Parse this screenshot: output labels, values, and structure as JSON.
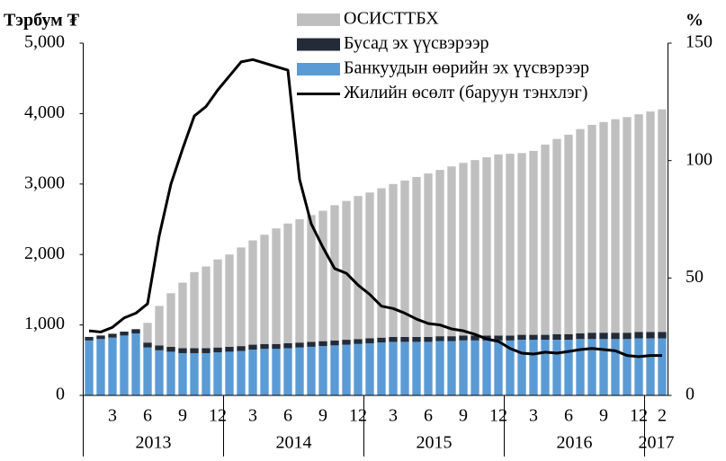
{
  "chart_data": {
    "type": "bar",
    "ylabel": "Тэрбум ₮",
    "y2label": "%",
    "categories": [
      null,
      null,
      "3",
      null,
      null,
      "6",
      null,
      null,
      "9",
      null,
      null,
      "12",
      null,
      null,
      "3",
      null,
      null,
      "6",
      null,
      null,
      "9",
      null,
      null,
      "12",
      null,
      null,
      "3",
      null,
      null,
      "6",
      null,
      null,
      "9",
      null,
      null,
      "12",
      null,
      null,
      "3",
      null,
      null,
      "6",
      null,
      null,
      "9",
      null,
      null,
      "12",
      null,
      "2"
    ],
    "years": [
      {
        "label": "2013",
        "from": 0,
        "to": 11
      },
      {
        "label": "2014",
        "from": 12,
        "to": 23
      },
      {
        "label": "2015",
        "from": 24,
        "to": 35
      },
      {
        "label": "2016",
        "from": 36,
        "to": 47
      },
      {
        "label": "2017",
        "from": 48,
        "to": 49
      }
    ],
    "series": [
      {
        "name": "Банкуудын өөрийн эх үүсвэрээр",
        "color": "#5b9bd5",
        "type": "bar",
        "values": [
          780,
          800,
          820,
          850,
          880,
          680,
          640,
          620,
          600,
          600,
          600,
          610,
          620,
          630,
          650,
          660,
          660,
          670,
          680,
          690,
          700,
          710,
          720,
          730,
          740,
          750,
          760,
          760,
          760,
          760,
          770,
          770,
          780,
          780,
          780,
          780,
          780,
          790,
          790,
          790,
          790,
          790,
          800,
          800,
          800,
          800,
          800,
          810,
          810,
          810
        ]
      },
      {
        "name": "Бусад эх үүсвэрээр",
        "color": "#232b38",
        "type": "bar",
        "values": [
          50,
          50,
          55,
          55,
          60,
          70,
          70,
          70,
          70,
          70,
          70,
          70,
          70,
          70,
          70,
          70,
          70,
          70,
          70,
          70,
          70,
          70,
          70,
          70,
          70,
          70,
          70,
          70,
          70,
          70,
          70,
          70,
          70,
          70,
          70,
          70,
          70,
          70,
          70,
          70,
          80,
          80,
          80,
          90,
          90,
          90,
          90,
          90,
          90,
          90
        ]
      },
      {
        "name": "ОСИСТТБХ",
        "color": "#bfbfbf",
        "type": "bar",
        "values": [
          0,
          0,
          0,
          0,
          0,
          280,
          560,
          760,
          930,
          1080,
          1160,
          1250,
          1310,
          1400,
          1480,
          1550,
          1640,
          1700,
          1750,
          1800,
          1850,
          1920,
          1970,
          2030,
          2070,
          2120,
          2170,
          2220,
          2270,
          2320,
          2360,
          2410,
          2450,
          2490,
          2530,
          2570,
          2580,
          2580,
          2610,
          2700,
          2770,
          2830,
          2900,
          2950,
          2990,
          3030,
          3060,
          3090,
          3130,
          3160
        ]
      },
      {
        "name": "Жилийн өсөлт (баруун тэнхлэг)",
        "color": "#000000",
        "type": "line",
        "axis": "y2",
        "values": [
          27.5,
          27,
          29,
          33,
          35,
          39,
          68,
          90,
          105,
          119,
          123,
          130,
          136,
          142,
          143,
          141.5,
          140,
          138.5,
          92,
          73,
          63,
          54,
          52,
          47,
          43,
          38,
          37,
          35,
          32.5,
          30.6,
          30,
          28.3,
          27.5,
          26,
          24,
          23,
          20,
          18,
          17.6,
          18.4,
          18,
          18.7,
          19.5,
          20,
          19.5,
          19,
          17,
          16.5,
          17,
          17
        ]
      }
    ],
    "ylim": [
      0,
      5000
    ],
    "yticks": [
      0,
      {
        "value": 1000,
        "label": "1,000"
      },
      {
        "value": 2000,
        "label": "2,000"
      },
      {
        "value": 3000,
        "label": "3,000"
      },
      {
        "value": 4000,
        "label": "4,000"
      },
      {
        "value": 5000,
        "label": "5,000"
      }
    ],
    "y2lim": [
      0,
      150
    ],
    "y2ticks": [
      0,
      50,
      100,
      150
    ],
    "grid": false
  }
}
